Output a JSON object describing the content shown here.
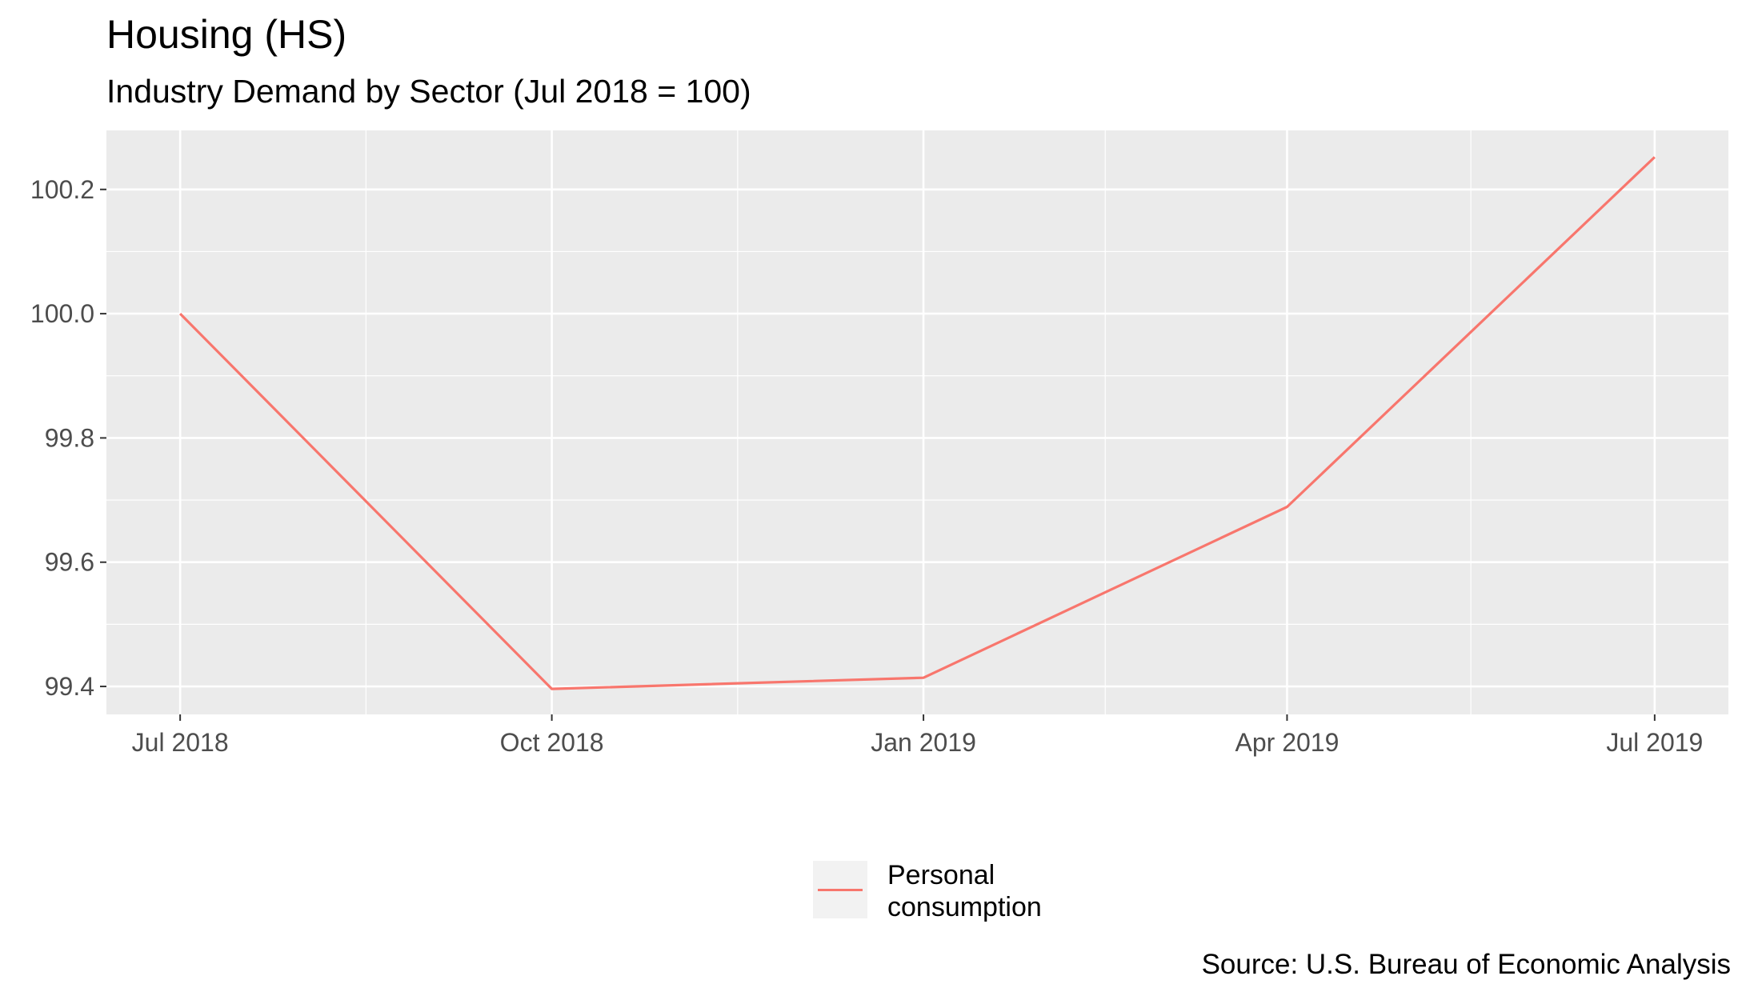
{
  "chart_data": {
    "type": "line",
    "title": "Housing (HS)",
    "subtitle": "Industry Demand by Sector (Jul 2018 = 100)",
    "caption": "Source: U.S. Bureau of Economic Analysis",
    "xlabel": "",
    "ylabel": "",
    "x": [
      "2018-07-01",
      "2018-10-01",
      "2019-01-01",
      "2019-04-01",
      "2019-07-01"
    ],
    "x_tick_labels": [
      "Jul 2018",
      "Oct 2018",
      "Jan 2019",
      "Apr 2019",
      "Jul 2019"
    ],
    "y_ticks": [
      99.4,
      99.6,
      99.8,
      100.0,
      100.2
    ],
    "y_tick_labels": [
      "99.4",
      "99.6",
      "99.8",
      "100.0",
      "100.2"
    ],
    "ylim": [
      99.355,
      100.295
    ],
    "series": [
      {
        "name": "Personal consumption",
        "color": "#F8766D",
        "values": [
          100.0,
          99.396,
          99.414,
          99.689,
          100.252
        ]
      }
    ],
    "legend": {
      "position": "bottom",
      "labels": [
        "Personal",
        "consumption"
      ]
    },
    "panel_background": "#EBEBEB",
    "grid": true
  }
}
